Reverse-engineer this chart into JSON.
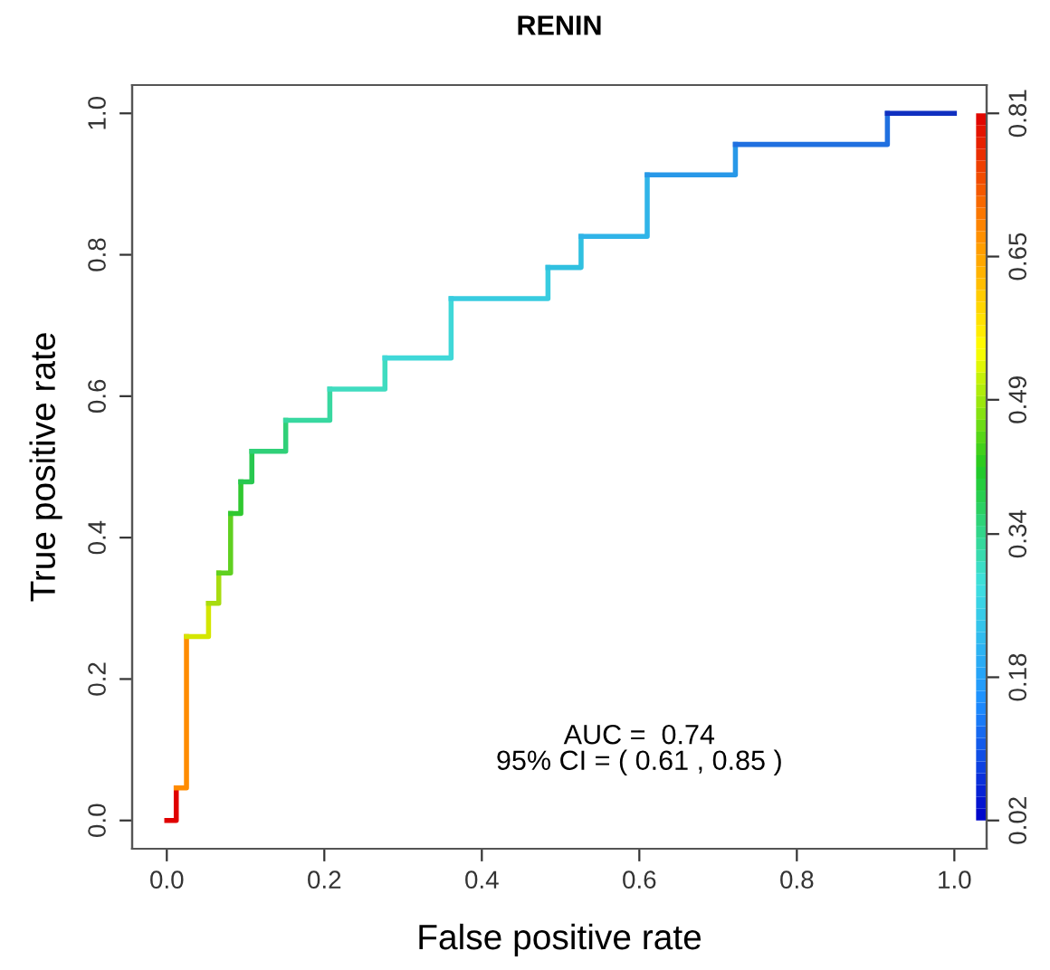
{
  "chart_data": {
    "type": "line",
    "title": "RENIN",
    "xlabel": "False positive rate",
    "ylabel": "True positive rate",
    "series": [
      {
        "color": "#e00000",
        "x": [
          0.0,
          0.012,
          0.012
        ],
        "values": [
          0.0,
          0.0,
          0.046
        ]
      },
      {
        "color": "#ff8c00",
        "x": [
          0.012,
          0.025,
          0.025
        ],
        "values": [
          0.046,
          0.046,
          0.26
        ]
      },
      {
        "color": "#d4e600",
        "x": [
          0.025,
          0.053,
          0.053
        ],
        "values": [
          0.26,
          0.26,
          0.307
        ]
      },
      {
        "color": "#a8dc10",
        "x": [
          0.053,
          0.066,
          0.066
        ],
        "values": [
          0.307,
          0.307,
          0.35
        ]
      },
      {
        "color": "#60d020",
        "x": [
          0.066,
          0.081,
          0.081
        ],
        "values": [
          0.35,
          0.35,
          0.434
        ]
      },
      {
        "color": "#30c830",
        "x": [
          0.081,
          0.094,
          0.094
        ],
        "values": [
          0.434,
          0.434,
          0.479
        ]
      },
      {
        "color": "#28c850",
        "x": [
          0.094,
          0.108,
          0.108
        ],
        "values": [
          0.479,
          0.479,
          0.522
        ]
      },
      {
        "color": "#30d078",
        "x": [
          0.108,
          0.151,
          0.151
        ],
        "values": [
          0.522,
          0.522,
          0.566
        ]
      },
      {
        "color": "#38d8a0",
        "x": [
          0.151,
          0.207,
          0.207
        ],
        "values": [
          0.566,
          0.566,
          0.61
        ]
      },
      {
        "color": "#40dcc0",
        "x": [
          0.207,
          0.277,
          0.277
        ],
        "values": [
          0.61,
          0.61,
          0.654
        ]
      },
      {
        "color": "#40d8d8",
        "x": [
          0.277,
          0.361,
          0.361
        ],
        "values": [
          0.654,
          0.654,
          0.738
        ]
      },
      {
        "color": "#38cce0",
        "x": [
          0.361,
          0.484,
          0.484
        ],
        "values": [
          0.738,
          0.738,
          0.782
        ]
      },
      {
        "color": "#30c0e0",
        "x": [
          0.484,
          0.526,
          0.526
        ],
        "values": [
          0.782,
          0.782,
          0.826
        ]
      },
      {
        "color": "#30b4e8",
        "x": [
          0.526,
          0.61,
          0.61
        ],
        "values": [
          0.826,
          0.826,
          0.913
        ]
      },
      {
        "color": "#2898e8",
        "x": [
          0.61,
          0.722,
          0.722
        ],
        "values": [
          0.913,
          0.913,
          0.956
        ]
      },
      {
        "color": "#2070e0",
        "x": [
          0.722,
          0.915,
          0.915
        ],
        "values": [
          0.956,
          0.956,
          1.0
        ]
      },
      {
        "color": "#1030c0",
        "x": [
          0.915,
          1.0
        ],
        "values": [
          1.0,
          1.0
        ]
      }
    ],
    "xlim": [
      -0.044,
      1.041
    ],
    "ylim": [
      -0.04,
      1.04
    ],
    "xticks": [
      {
        "value": 0,
        "label": "0.0"
      },
      0.2,
      0.4,
      0.6,
      0.8,
      {
        "value": 1,
        "label": "1.0"
      }
    ],
    "yticks": [
      {
        "value": 0,
        "label": "0.0"
      },
      0.2,
      0.4,
      0.6,
      0.8,
      {
        "value": 1,
        "label": "1.0"
      }
    ],
    "y2lim": [
      -0.0116,
      0.8416
    ],
    "y2ticks": [
      0.02,
      0.18,
      0.34,
      0.49,
      0.65,
      0.81
    ],
    "grid": false,
    "annotations": [
      "AUC =  0.74\n95% CI = ( 0.61 , 0.85 )"
    ]
  }
}
